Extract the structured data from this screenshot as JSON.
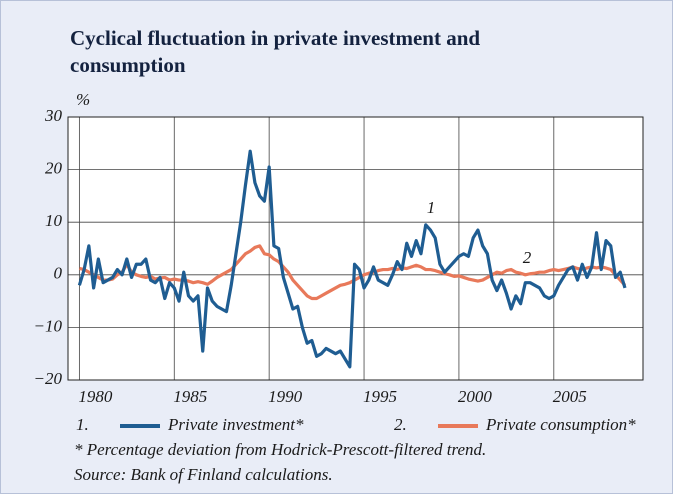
{
  "chart_data": {
    "type": "line",
    "title": [
      "Cyclical fluctuation in private investment and",
      "consumption"
    ],
    "ylabel": "%",
    "x": [
      1980,
      1980.25,
      1980.5,
      1980.75,
      1981,
      1981.25,
      1981.5,
      1981.75,
      1982,
      1982.25,
      1982.5,
      1982.75,
      1983,
      1983.25,
      1983.5,
      1983.75,
      1984,
      1984.25,
      1984.5,
      1984.75,
      1985,
      1985.25,
      1985.5,
      1985.75,
      1986,
      1986.25,
      1986.5,
      1986.75,
      1987,
      1987.25,
      1987.5,
      1987.75,
      1988,
      1988.25,
      1988.5,
      1988.75,
      1989,
      1989.25,
      1989.5,
      1989.75,
      1990,
      1990.25,
      1990.5,
      1990.75,
      1991,
      1991.25,
      1991.5,
      1991.75,
      1992,
      1992.25,
      1992.5,
      1992.75,
      1993,
      1993.25,
      1993.5,
      1993.75,
      1994,
      1994.25,
      1994.5,
      1994.75,
      1995,
      1995.25,
      1995.5,
      1995.75,
      1996,
      1996.25,
      1996.5,
      1996.75,
      1997,
      1997.25,
      1997.5,
      1997.75,
      1998,
      1998.25,
      1998.5,
      1998.75,
      1999,
      1999.25,
      1999.5,
      1999.75,
      2000,
      2000.25,
      2000.5,
      2000.75,
      2001,
      2001.25,
      2001.5,
      2001.75,
      2002,
      2002.25,
      2002.5,
      2002.75,
      2003,
      2003.25,
      2003.5,
      2003.75,
      2004,
      2004.25,
      2004.5,
      2004.75,
      2005,
      2005.25,
      2005.5,
      2005.75,
      2006,
      2006.25,
      2006.5,
      2006.75,
      2007,
      2007.25,
      2007.5,
      2007.75,
      2008,
      2008.25,
      2008.5,
      2008.75
    ],
    "series": [
      {
        "key": "1.",
        "name": "Private investment*",
        "color": "#1f5d92",
        "values": [
          -2,
          1,
          5.5,
          -2.5,
          3,
          -1.5,
          -1,
          -0.5,
          1,
          0,
          3,
          -0.5,
          2,
          2,
          3,
          -1,
          -1.5,
          -0.5,
          -4.5,
          -1.5,
          -2.5,
          -5,
          0.5,
          -4,
          -5,
          -4,
          -14.5,
          -2.5,
          -5,
          -6,
          -6.5,
          -7,
          -2,
          4,
          10,
          17,
          23.5,
          17.5,
          15,
          14,
          20.5,
          5.5,
          5,
          -0.5,
          -3.5,
          -6.5,
          -6,
          -10,
          -13,
          -12.5,
          -15.5,
          -15,
          -14,
          -14.5,
          -15,
          -14.5,
          -16,
          -17.5,
          2,
          1,
          -2.5,
          -1,
          1.5,
          -1,
          -1.5,
          -2,
          0,
          2.5,
          1,
          6,
          3.5,
          6.5,
          4,
          9.5,
          8.5,
          7,
          2,
          0.5,
          1.5,
          2.5,
          3.5,
          4,
          3.5,
          7,
          8.5,
          5.5,
          4,
          -1,
          -3,
          -1,
          -3.5,
          -6.5,
          -4,
          -5.5,
          -1.5,
          -1.5,
          -2,
          -2.5,
          -4,
          -4.5,
          -4,
          -2,
          -0.5,
          1,
          1.5,
          -1,
          2,
          -0.5,
          1.5,
          8,
          1,
          6.5,
          5.5,
          -0.5,
          0.5,
          -2.5
        ]
      },
      {
        "key": "2.",
        "name": "Private consumption*",
        "color": "#e8795a",
        "values": [
          1.2,
          1,
          0.5,
          0,
          -0.5,
          -1,
          -1,
          -0.8,
          0,
          0.5,
          2,
          0.5,
          0,
          -0.3,
          -0.5,
          -0.3,
          -0.8,
          -0.6,
          -0.5,
          -1,
          -0.8,
          -1,
          -1,
          -1.2,
          -1.5,
          -1.3,
          -1.5,
          -1.8,
          -1.2,
          -0.5,
          0,
          0.5,
          1,
          2,
          3,
          4,
          4.5,
          5.2,
          5.5,
          4,
          3.8,
          3,
          2.5,
          1.5,
          0.5,
          -1,
          -2,
          -3,
          -4,
          -4.5,
          -4.5,
          -4,
          -3.5,
          -3,
          -2.5,
          -2,
          -1.8,
          -1.5,
          -1,
          -0.5,
          0,
          0.3,
          0.5,
          0.8,
          1,
          1,
          1.2,
          1,
          1.3,
          1.2,
          1.5,
          1.8,
          1.5,
          1,
          1,
          0.8,
          0.5,
          0.2,
          0,
          -0.3,
          -0.2,
          -0.5,
          -0.8,
          -1,
          -1.2,
          -1,
          -0.5,
          0,
          0.5,
          0.3,
          0.8,
          1,
          0.5,
          0.3,
          0,
          0.2,
          0.3,
          0.5,
          0.5,
          0.8,
          1,
          0.8,
          1,
          1.2,
          1.5,
          1.2,
          1,
          1.3,
          1.5,
          1.3,
          1.5,
          1.3,
          1,
          0,
          -1,
          -2
        ]
      }
    ],
    "annotations": [
      "1",
      "2"
    ],
    "xlim": [
      1979.4,
      2009.7
    ],
    "xticks": [
      1980,
      1985,
      1990,
      1995,
      2000,
      2005
    ],
    "ylim": [
      -20,
      30
    ],
    "yticks": [
      {
        "value": -20,
        "label": "−20"
      },
      {
        "value": -10,
        "label": "−10"
      },
      0,
      10,
      20,
      30
    ],
    "grid": true,
    "footnote": "*  Percentage deviation from Hodrick-Prescott-filtered trend.",
    "source": "Source: Bank of Finland calculations."
  }
}
